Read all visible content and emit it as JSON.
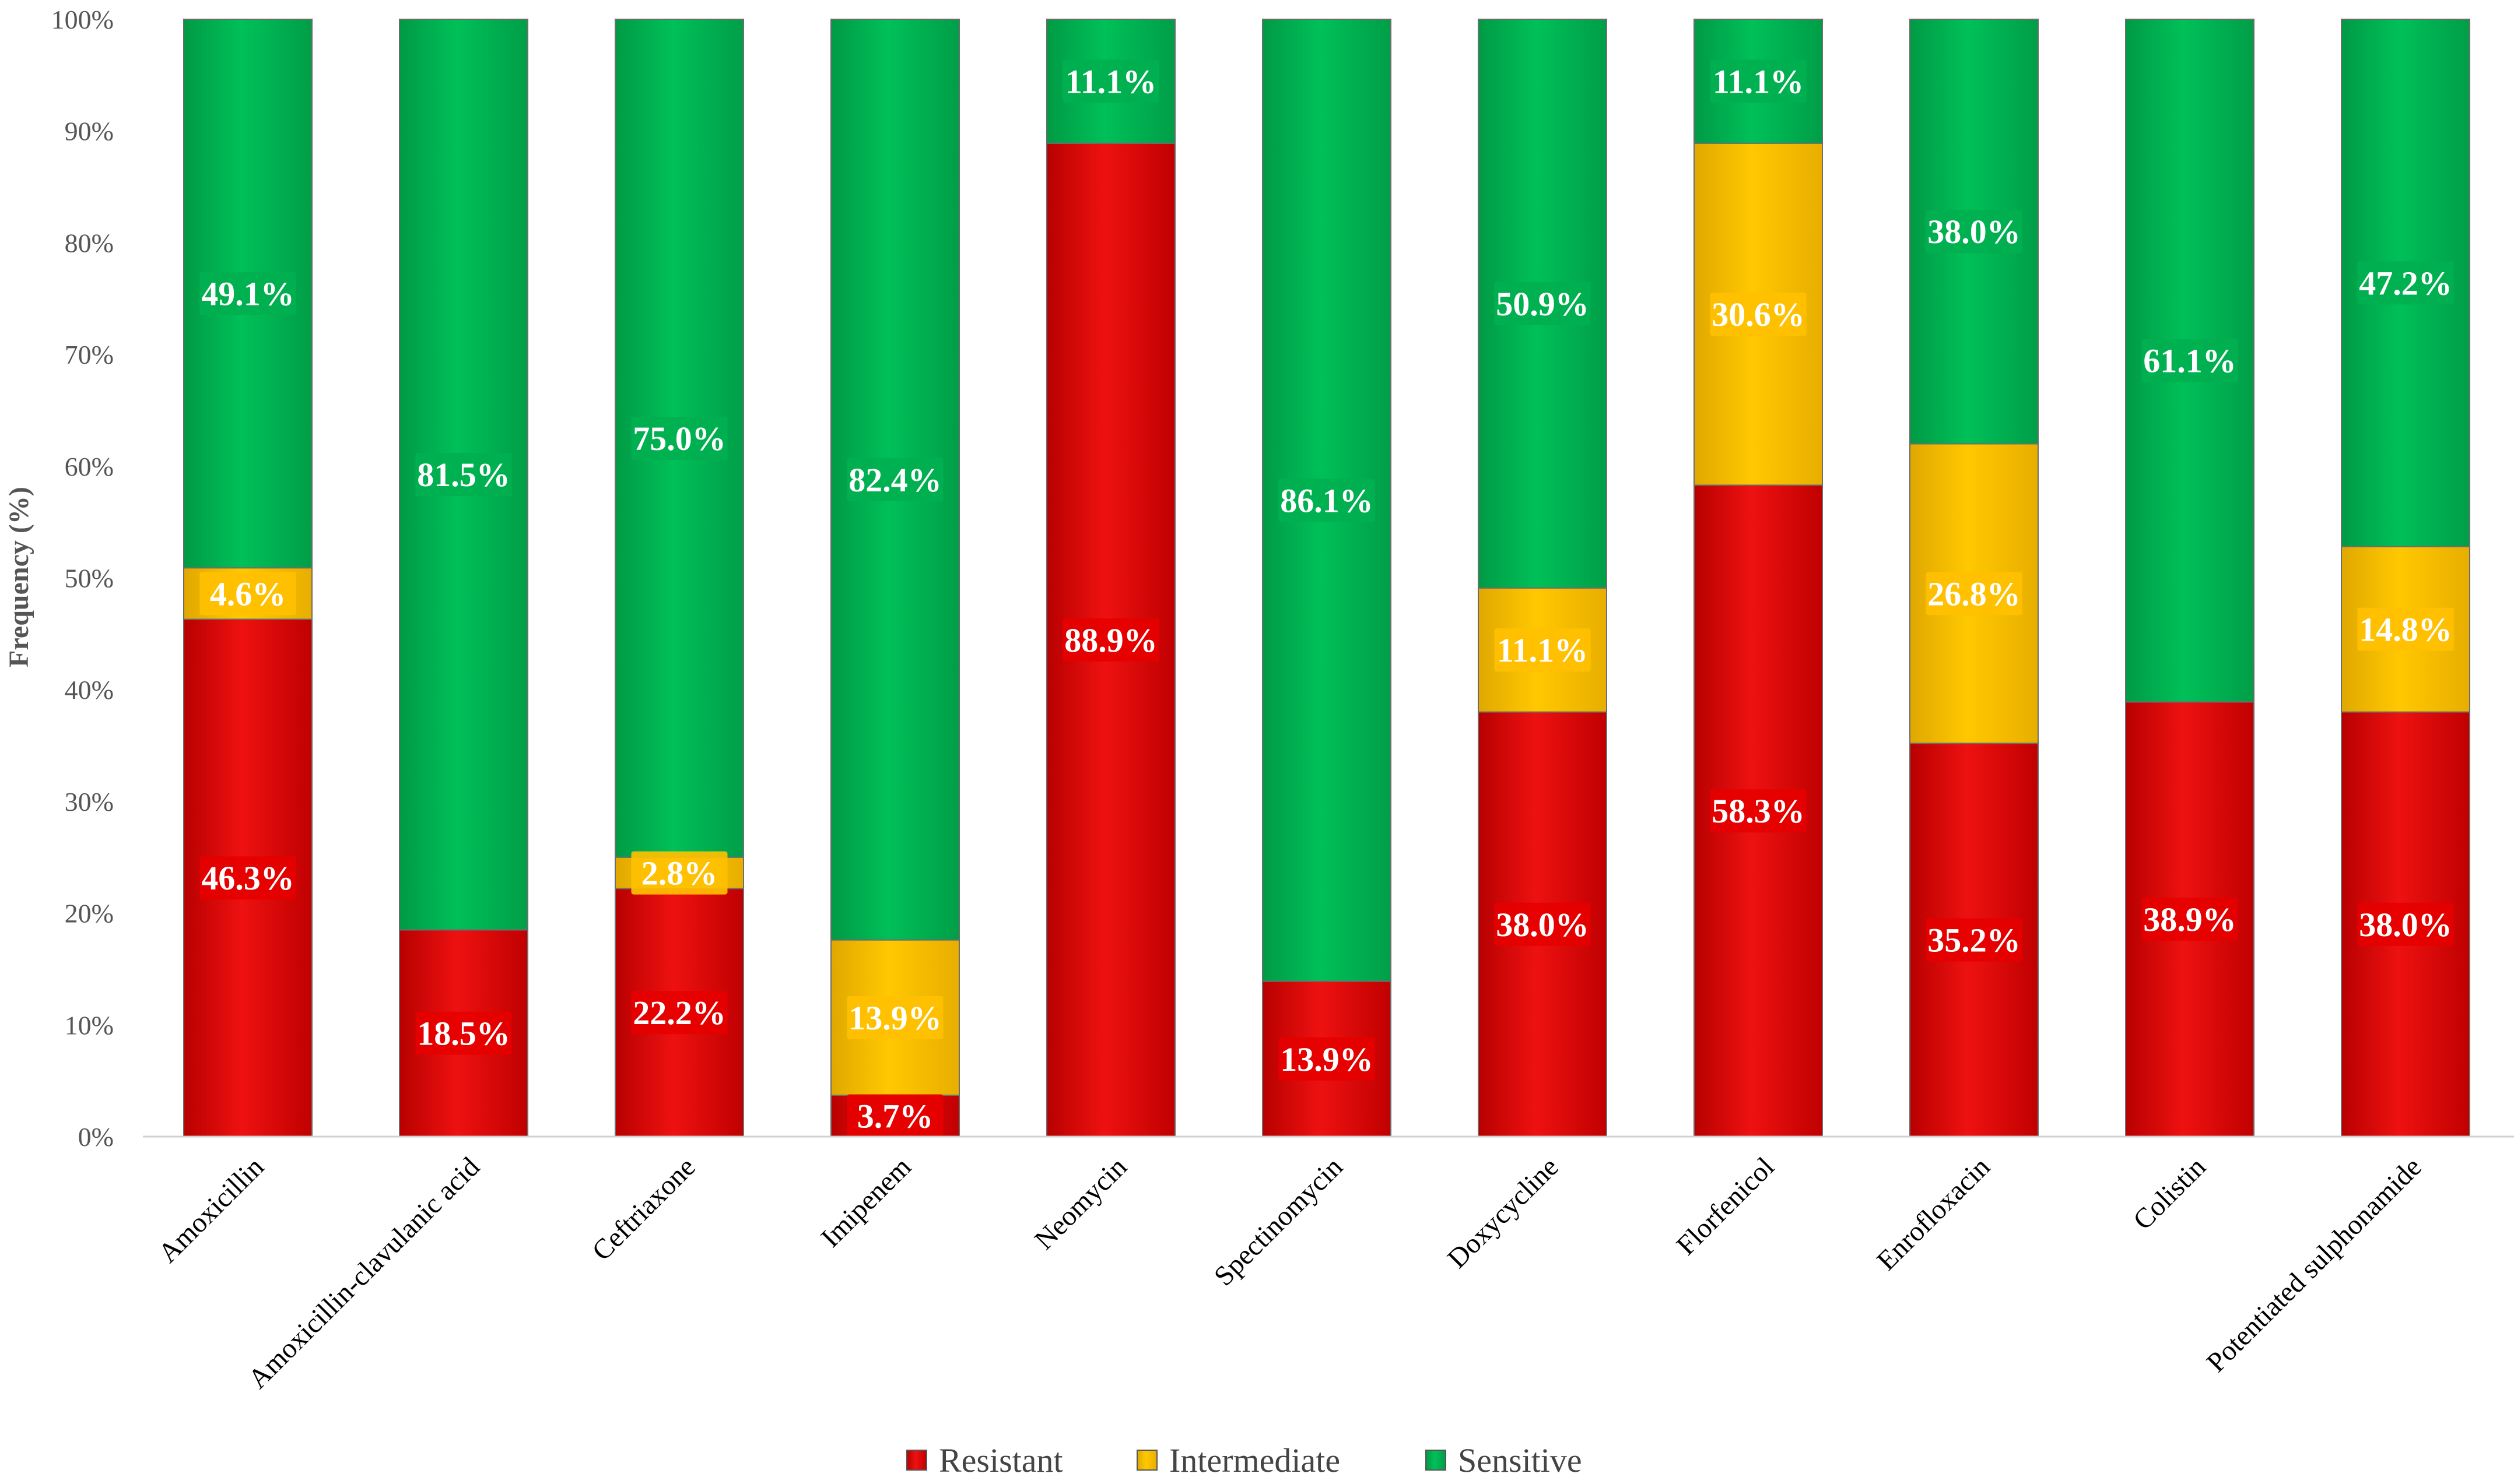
{
  "chart_data": {
    "type": "bar",
    "stacked": true,
    "title": "",
    "xlabel": "",
    "ylabel": "Frequency (%)",
    "ylim": [
      0,
      100
    ],
    "yticks": [
      0,
      10,
      20,
      30,
      40,
      50,
      60,
      70,
      80,
      90,
      100
    ],
    "ytick_labels": [
      "0%",
      "10%",
      "20%",
      "30%",
      "40%",
      "50%",
      "60%",
      "70%",
      "80%",
      "90%",
      "100%"
    ],
    "categories": [
      "Amoxicillin",
      "Amoxicillin-clavulanic acid",
      "Ceftriaxone",
      "Imipenem",
      "Neomycin",
      "Spectinomycin",
      "Doxycycline",
      "Florfenicol",
      "Enrofloxacin",
      "Colistin",
      "Potentiated sulphonamide"
    ],
    "series": [
      {
        "name": "Resistant",
        "color": "#E60000",
        "values": [
          46.3,
          18.5,
          22.2,
          3.7,
          88.9,
          13.9,
          38.0,
          58.3,
          35.2,
          38.9,
          38.0
        ],
        "labels": [
          "46.3%",
          "18.5%",
          "22.2%",
          "3.7%",
          "88.9%",
          "13.9%",
          "38.0%",
          "58.3%",
          "35.2%",
          "38.9%",
          "38.0%"
        ]
      },
      {
        "name": "Intermediate",
        "color": "#FFC000",
        "values": [
          4.6,
          0,
          2.8,
          13.9,
          0,
          0,
          11.1,
          30.6,
          26.8,
          0,
          14.8
        ],
        "labels": [
          "4.6%",
          "",
          "2.8%",
          "13.9%",
          "",
          "",
          "11.1%",
          "30.6%",
          "26.8%",
          "",
          "14.8%"
        ]
      },
      {
        "name": "Sensitive",
        "color": "#00B050",
        "values": [
          49.1,
          81.5,
          75.0,
          82.4,
          11.1,
          86.1,
          50.9,
          11.1,
          38.0,
          61.1,
          47.2
        ],
        "labels": [
          "49.1%",
          "81.5%",
          "75.0%",
          "82.4%",
          "11.1%",
          "86.1%",
          "50.9%",
          "11.1%",
          "38.0%",
          "61.1%",
          "47.2%"
        ]
      }
    ],
    "legend_position": "bottom-center"
  }
}
